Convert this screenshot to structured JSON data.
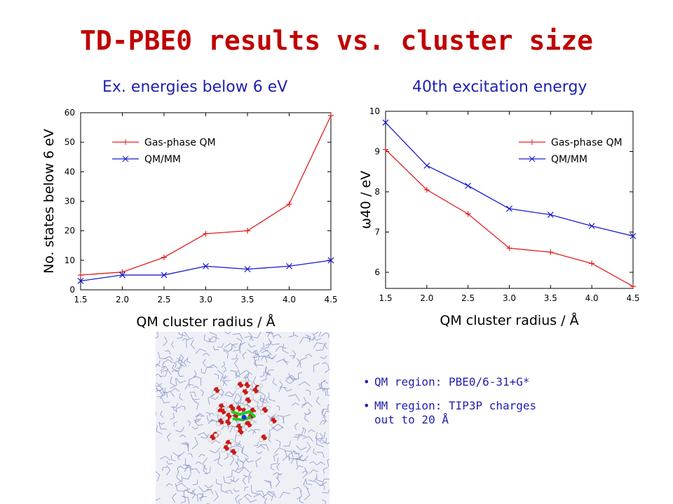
{
  "title": "TD-PBE0 results vs. cluster size",
  "panel_titles": [
    "Ex. energies below 6 eV",
    "40th excitation energy"
  ],
  "bullets": [
    {
      "lines": [
        "QM region: PBE0/6-31+G*"
      ]
    },
    {
      "lines": [
        "MM region: TIP3P charges",
        "out to 20 Å"
      ]
    }
  ],
  "chart_data": [
    {
      "type": "line",
      "x": [
        1.5,
        2.0,
        2.5,
        3.0,
        3.5,
        4.0,
        4.5
      ],
      "xlabel": "QM cluster radius / Å",
      "ylabel": "No. states below 6 eV",
      "xlim": [
        1.5,
        4.5
      ],
      "ylim": [
        0,
        60
      ],
      "xticks": [
        "1.5",
        "2.0",
        "2.5",
        "3.0",
        "3.5",
        "4.0",
        "4.5"
      ],
      "yticks": [
        "0",
        "10",
        "20",
        "30",
        "40",
        "50",
        "60"
      ],
      "legend_position": "top-left",
      "series": [
        {
          "name": "Gas-phase QM",
          "color": "#e02020",
          "marker": "plus",
          "values": [
            5,
            6,
            11,
            19,
            20,
            29,
            59
          ]
        },
        {
          "name": "QM/MM",
          "color": "#1a1ad0",
          "marker": "cross",
          "values": [
            3,
            5,
            5,
            8,
            7,
            8,
            10
          ]
        }
      ]
    },
    {
      "type": "line",
      "x": [
        1.5,
        2.0,
        2.5,
        3.0,
        3.5,
        4.0,
        4.5
      ],
      "xlabel": "QM cluster radius / Å",
      "ylabel": "ω40 / eV",
      "xlim": [
        1.5,
        4.5
      ],
      "ylim": [
        5.6,
        10
      ],
      "xticks": [
        "1.5",
        "2.0",
        "2.5",
        "3.0",
        "3.5",
        "4.0",
        "4.5"
      ],
      "yticks": [
        "6",
        "7",
        "8",
        "9",
        "10"
      ],
      "legend_position": "top-right",
      "series": [
        {
          "name": "Gas-phase QM",
          "color": "#e02020",
          "marker": "plus",
          "values": [
            9.05,
            8.05,
            7.45,
            6.6,
            6.5,
            6.22,
            5.65
          ]
        },
        {
          "name": "QM/MM",
          "color": "#1a1ad0",
          "marker": "cross",
          "values": [
            9.72,
            8.65,
            8.15,
            7.58,
            7.43,
            7.15,
            6.9
          ]
        }
      ]
    }
  ]
}
